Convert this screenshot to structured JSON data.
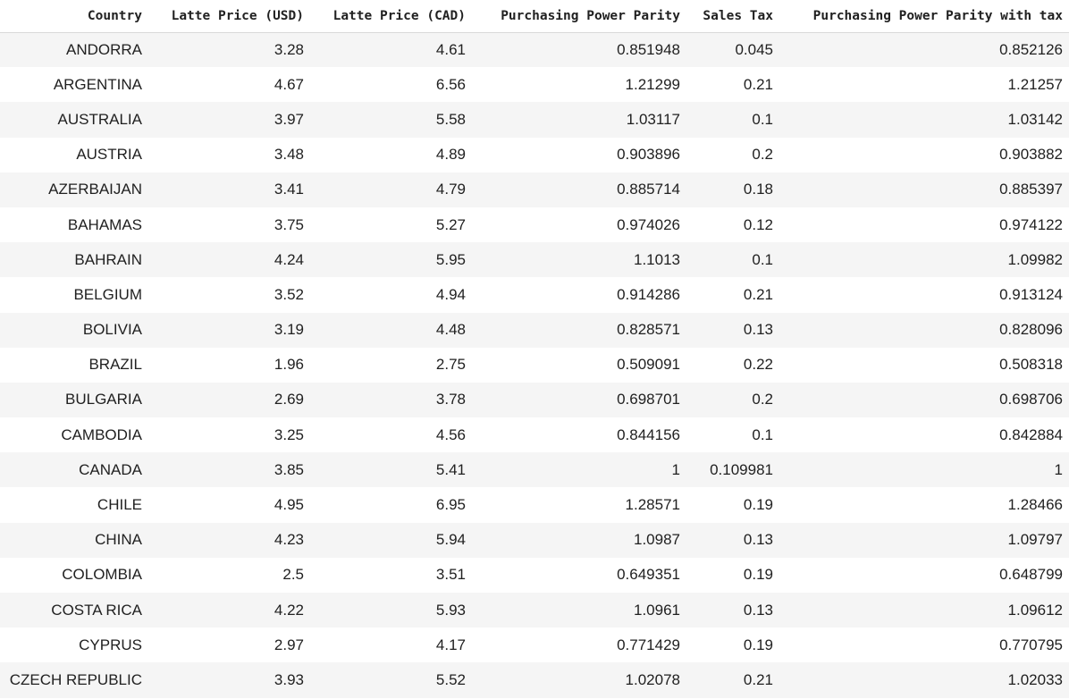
{
  "table": {
    "columns": [
      "Country",
      "Latte Price (USD)",
      "Latte Price (CAD)",
      "Purchasing Power Parity",
      "Sales Tax",
      "Purchasing Power Parity with tax"
    ],
    "rows": [
      [
        "ANDORRA",
        "3.28",
        "4.61",
        "0.851948",
        "0.045",
        "0.852126"
      ],
      [
        "ARGENTINA",
        "4.67",
        "6.56",
        "1.21299",
        "0.21",
        "1.21257"
      ],
      [
        "AUSTRALIA",
        "3.97",
        "5.58",
        "1.03117",
        "0.1",
        "1.03142"
      ],
      [
        "AUSTRIA",
        "3.48",
        "4.89",
        "0.903896",
        "0.2",
        "0.903882"
      ],
      [
        "AZERBAIJAN",
        "3.41",
        "4.79",
        "0.885714",
        "0.18",
        "0.885397"
      ],
      [
        "BAHAMAS",
        "3.75",
        "5.27",
        "0.974026",
        "0.12",
        "0.974122"
      ],
      [
        "BAHRAIN",
        "4.24",
        "5.95",
        "1.1013",
        "0.1",
        "1.09982"
      ],
      [
        "BELGIUM",
        "3.52",
        "4.94",
        "0.914286",
        "0.21",
        "0.913124"
      ],
      [
        "BOLIVIA",
        "3.19",
        "4.48",
        "0.828571",
        "0.13",
        "0.828096"
      ],
      [
        "BRAZIL",
        "1.96",
        "2.75",
        "0.509091",
        "0.22",
        "0.508318"
      ],
      [
        "BULGARIA",
        "2.69",
        "3.78",
        "0.698701",
        "0.2",
        "0.698706"
      ],
      [
        "CAMBODIA",
        "3.25",
        "4.56",
        "0.844156",
        "0.1",
        "0.842884"
      ],
      [
        "CANADA",
        "3.85",
        "5.41",
        "1",
        "0.109981",
        "1"
      ],
      [
        "CHILE",
        "4.95",
        "6.95",
        "1.28571",
        "0.19",
        "1.28466"
      ],
      [
        "CHINA",
        "4.23",
        "5.94",
        "1.0987",
        "0.13",
        "1.09797"
      ],
      [
        "COLOMBIA",
        "2.5",
        "3.51",
        "0.649351",
        "0.19",
        "0.648799"
      ],
      [
        "COSTA RICA",
        "4.22",
        "5.93",
        "1.0961",
        "0.13",
        "1.09612"
      ],
      [
        "CYPRUS",
        "2.97",
        "4.17",
        "0.771429",
        "0.19",
        "0.770795"
      ],
      [
        "CZECH REPUBLIC",
        "3.93",
        "5.52",
        "1.02078",
        "0.21",
        "1.02033"
      ]
    ]
  }
}
